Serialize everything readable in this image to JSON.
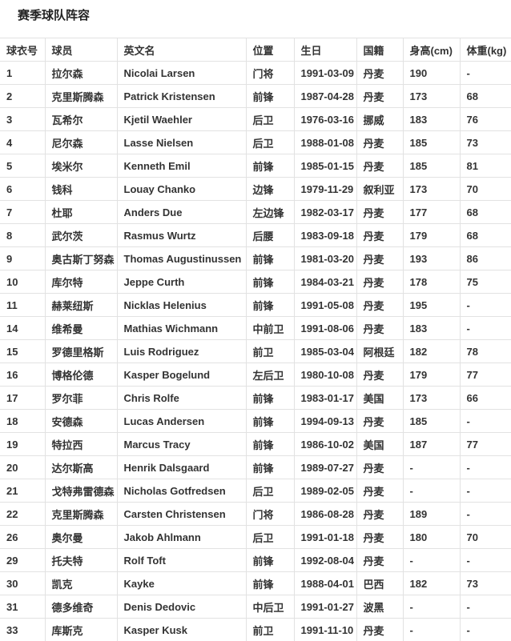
{
  "page_title": "赛季球队阵容",
  "colors": {
    "border": "#e2e2e2",
    "text": "#333333",
    "background": "#ffffff"
  },
  "table": {
    "columns": [
      "球衣号",
      "球员",
      "英文名",
      "位置",
      "生日",
      "国籍",
      "身高(cm)",
      "体重(kg)"
    ],
    "rows": [
      [
        "1",
        "拉尔森",
        "Nicolai Larsen",
        "门将",
        "1991-03-09",
        "丹麦",
        "190",
        "-"
      ],
      [
        "2",
        "克里斯腾森",
        "Patrick Kristensen",
        "前锋",
        "1987-04-28",
        "丹麦",
        "173",
        "68"
      ],
      [
        "3",
        "瓦希尔",
        "Kjetil Waehler",
        "后卫",
        "1976-03-16",
        "挪威",
        "183",
        "76"
      ],
      [
        "4",
        "尼尔森",
        "Lasse Nielsen",
        "后卫",
        "1988-01-08",
        "丹麦",
        "185",
        "73"
      ],
      [
        "5",
        "埃米尔",
        "Kenneth Emil",
        "前锋",
        "1985-01-15",
        "丹麦",
        "185",
        "81"
      ],
      [
        "6",
        "钱科",
        "Louay Chanko",
        "边锋",
        "1979-11-29",
        "叙利亚",
        "173",
        "70"
      ],
      [
        "7",
        "杜耶",
        "Anders Due",
        "左边锋",
        "1982-03-17",
        "丹麦",
        "177",
        "68"
      ],
      [
        "8",
        "武尔茨",
        "Rasmus Wurtz",
        "后腰",
        "1983-09-18",
        "丹麦",
        "179",
        "68"
      ],
      [
        "9",
        "奥古斯丁努森",
        "Thomas Augustinussen",
        "前锋",
        "1981-03-20",
        "丹麦",
        "193",
        "86"
      ],
      [
        "10",
        "库尔特",
        "Jeppe Curth",
        "前锋",
        "1984-03-21",
        "丹麦",
        "178",
        "75"
      ],
      [
        "11",
        "赫莱纽斯",
        "Nicklas Helenius",
        "前锋",
        "1991-05-08",
        "丹麦",
        "195",
        "-"
      ],
      [
        "14",
        "维希曼",
        "Mathias Wichmann",
        "中前卫",
        "1991-08-06",
        "丹麦",
        "183",
        "-"
      ],
      [
        "15",
        "罗德里格斯",
        "Luis Rodriguez",
        "前卫",
        "1985-03-04",
        "阿根廷",
        "182",
        "78"
      ],
      [
        "16",
        "博格伦德",
        "Kasper Bogelund",
        "左后卫",
        "1980-10-08",
        "丹麦",
        "179",
        "77"
      ],
      [
        "17",
        "罗尔菲",
        "Chris Rolfe",
        "前锋",
        "1983-01-17",
        "美国",
        "173",
        "66"
      ],
      [
        "18",
        "安德森",
        "Lucas Andersen",
        "前锋",
        "1994-09-13",
        "丹麦",
        "185",
        "-"
      ],
      [
        "19",
        "特拉西",
        "Marcus Tracy",
        "前锋",
        "1986-10-02",
        "美国",
        "187",
        "77"
      ],
      [
        "20",
        "达尔斯高",
        "Henrik Dalsgaard",
        "前锋",
        "1989-07-27",
        "丹麦",
        "-",
        "-"
      ],
      [
        "21",
        "戈特弗雷德森",
        "Nicholas Gotfredsen",
        "后卫",
        "1989-02-05",
        "丹麦",
        "-",
        "-"
      ],
      [
        "22",
        "克里斯腾森",
        "Carsten Christensen",
        "门将",
        "1986-08-28",
        "丹麦",
        "189",
        "-"
      ],
      [
        "26",
        "奥尔曼",
        "Jakob Ahlmann",
        "后卫",
        "1991-01-18",
        "丹麦",
        "180",
        "70"
      ],
      [
        "29",
        "托夫特",
        "Rolf Toft",
        "前锋",
        "1992-08-04",
        "丹麦",
        "-",
        "-"
      ],
      [
        "30",
        "凯克",
        "Kayke",
        "前锋",
        "1988-04-01",
        "巴西",
        "182",
        "73"
      ],
      [
        "31",
        "德多维奇",
        "Denis Dedovic",
        "中后卫",
        "1991-01-27",
        "波黑",
        "-",
        "-"
      ],
      [
        "33",
        "库斯克",
        "Kasper Kusk",
        "前卫",
        "1991-11-10",
        "丹麦",
        "-",
        "-"
      ]
    ]
  }
}
